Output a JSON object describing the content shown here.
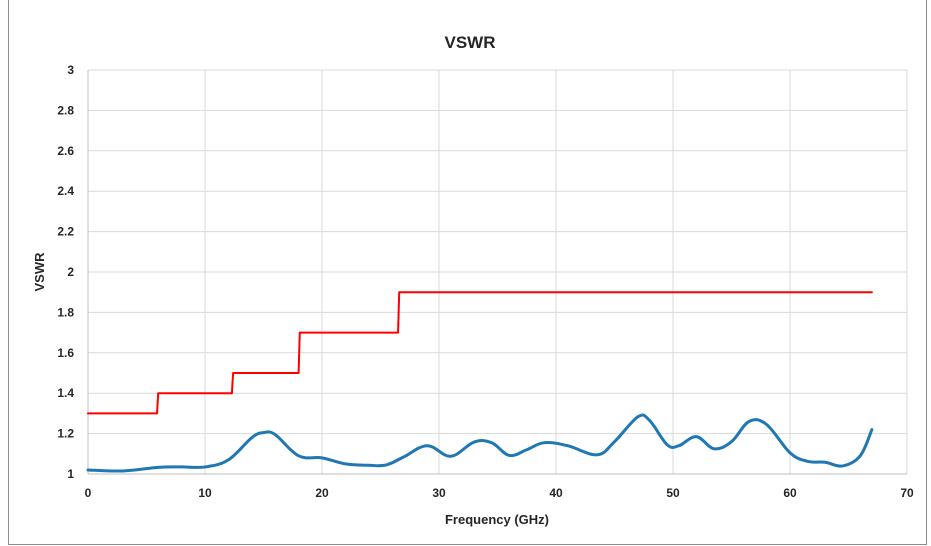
{
  "chart_data": {
    "type": "line",
    "title": "VSWR",
    "xlabel": "Frequency (GHz)",
    "ylabel": "VSWR",
    "xlim": [
      0,
      70
    ],
    "ylim": [
      1,
      3
    ],
    "x_ticks": [
      "0",
      "10",
      "20",
      "30",
      "40",
      "50",
      "60",
      "70"
    ],
    "y_ticks": [
      "1",
      "1.2",
      "1.4",
      "1.6",
      "1.8",
      "2",
      "2.2",
      "2.4",
      "2.6",
      "2.8",
      "3"
    ],
    "grid": true,
    "legend": "none",
    "series": [
      {
        "color": "#ff0000",
        "style": "step",
        "points": [
          [
            0,
            1.3
          ],
          [
            5.9,
            1.3
          ],
          [
            6.0,
            1.4
          ],
          [
            12.3,
            1.4
          ],
          [
            12.4,
            1.5
          ],
          [
            18.0,
            1.5
          ],
          [
            18.1,
            1.7
          ],
          [
            26.5,
            1.7
          ],
          [
            26.6,
            1.9
          ],
          [
            67,
            1.9
          ]
        ]
      },
      {
        "color": "#1f77b4",
        "style": "smooth",
        "points": [
          [
            0,
            1.02
          ],
          [
            3,
            1.015
          ],
          [
            6,
            1.033
          ],
          [
            8,
            1.035
          ],
          [
            10,
            1.035
          ],
          [
            12,
            1.07
          ],
          [
            14,
            1.18
          ],
          [
            15,
            1.205
          ],
          [
            16,
            1.195
          ],
          [
            18,
            1.09
          ],
          [
            20,
            1.08
          ],
          [
            22,
            1.05
          ],
          [
            24,
            1.043
          ],
          [
            25.5,
            1.045
          ],
          [
            27,
            1.085
          ],
          [
            29,
            1.14
          ],
          [
            31,
            1.088
          ],
          [
            33,
            1.158
          ],
          [
            34.5,
            1.155
          ],
          [
            36,
            1.092
          ],
          [
            37.5,
            1.12
          ],
          [
            39,
            1.155
          ],
          [
            41,
            1.14
          ],
          [
            43.5,
            1.095
          ],
          [
            45,
            1.16
          ],
          [
            47,
            1.283
          ],
          [
            48,
            1.265
          ],
          [
            49.5,
            1.145
          ],
          [
            50.5,
            1.14
          ],
          [
            52,
            1.185
          ],
          [
            53.5,
            1.125
          ],
          [
            55,
            1.16
          ],
          [
            56.5,
            1.26
          ],
          [
            58,
            1.245
          ],
          [
            60,
            1.105
          ],
          [
            61.5,
            1.063
          ],
          [
            63,
            1.058
          ],
          [
            64.5,
            1.04
          ],
          [
            66,
            1.09
          ],
          [
            67,
            1.22
          ]
        ]
      }
    ]
  }
}
